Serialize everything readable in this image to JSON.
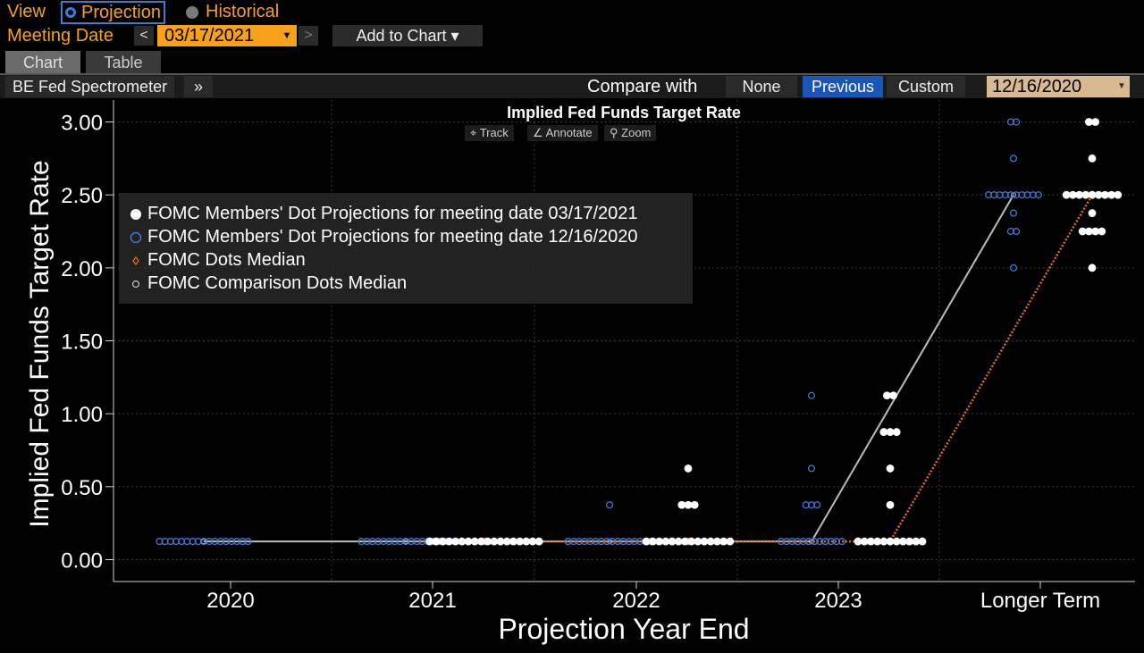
{
  "header": {
    "view_label": "View",
    "projection_label": "Projection",
    "historical_label": "Historical",
    "meeting_label": "Meeting Date",
    "meeting_date": "03/17/2021",
    "prev_glyph": "<",
    "next_glyph": ">",
    "add_to_chart_label": "Add to Chart ▾"
  },
  "tabs": {
    "chart": "Chart",
    "table": "Table"
  },
  "toolbar": {
    "study_label": "BE Fed Spectrometer",
    "expand_glyph": "»",
    "compare_label": "Compare with",
    "none_label": "None",
    "previous_label": "Previous",
    "custom_label": "Custom",
    "compare_date": "12/16/2020"
  },
  "chart_tools": {
    "track": "Track",
    "annotate": "Annotate",
    "zoom": "Zoom"
  },
  "colors": {
    "accent_orange": "#f7a11a",
    "current_dots": "#ffffff",
    "previous_dots": "#3f78d6",
    "median": "#e36a1e",
    "comparison_median": "#bcbcbc"
  },
  "chart_data": {
    "type": "scatter",
    "title": "Implied Fed Funds Target Rate",
    "xlabel": "Projection Year End",
    "ylabel": "Implied Fed Funds Target Rate",
    "categories": [
      "2020",
      "2021",
      "2022",
      "2023",
      "Longer Term"
    ],
    "ylim": [
      -0.15,
      3.15
    ],
    "yticks": [
      "0.00",
      "0.50",
      "1.00",
      "1.50",
      "2.00",
      "2.50",
      "3.00"
    ],
    "legend": [
      "FOMC Members' Dot Projections for meeting date 03/17/2021",
      "FOMC Members' Dot Projections for meeting date 12/16/2020",
      "FOMC Dots Median",
      "FOMC Comparison Dots Median"
    ],
    "series": [
      {
        "name": "FOMC Members' Dot Projections for meeting date 03/17/2021",
        "points": [
          {
            "category": "2021",
            "y": 0.125,
            "count": 18
          },
          {
            "category": "2022",
            "y": 0.125,
            "count": 14
          },
          {
            "category": "2022",
            "y": 0.375,
            "count": 3
          },
          {
            "category": "2022",
            "y": 0.625,
            "count": 1
          },
          {
            "category": "2023",
            "y": 0.125,
            "count": 11
          },
          {
            "category": "2023",
            "y": 0.375,
            "count": 1
          },
          {
            "category": "2023",
            "y": 0.625,
            "count": 1
          },
          {
            "category": "2023",
            "y": 0.875,
            "count": 3
          },
          {
            "category": "2023",
            "y": 1.125,
            "count": 2
          },
          {
            "category": "Longer Term",
            "y": 2.0,
            "count": 1
          },
          {
            "category": "Longer Term",
            "y": 2.25,
            "count": 4
          },
          {
            "category": "Longer Term",
            "y": 2.375,
            "count": 1
          },
          {
            "category": "Longer Term",
            "y": 2.5,
            "count": 9
          },
          {
            "category": "Longer Term",
            "y": 2.75,
            "count": 1
          },
          {
            "category": "Longer Term",
            "y": 3.0,
            "count": 2
          }
        ]
      },
      {
        "name": "FOMC Members' Dot Projections for meeting date 12/16/2020",
        "points": [
          {
            "category": "2020",
            "y": 0.125,
            "count": 17
          },
          {
            "category": "2021",
            "y": 0.125,
            "count": 17
          },
          {
            "category": "2022",
            "y": 0.125,
            "count": 16
          },
          {
            "category": "2022",
            "y": 0.375,
            "count": 1
          },
          {
            "category": "2023",
            "y": 0.125,
            "count": 12
          },
          {
            "category": "2023",
            "y": 0.375,
            "count": 3
          },
          {
            "category": "2023",
            "y": 0.625,
            "count": 1
          },
          {
            "category": "2023",
            "y": 1.125,
            "count": 1
          },
          {
            "category": "Longer Term",
            "y": 2.0,
            "count": 1
          },
          {
            "category": "Longer Term",
            "y": 2.25,
            "count": 2
          },
          {
            "category": "Longer Term",
            "y": 2.375,
            "count": 1
          },
          {
            "category": "Longer Term",
            "y": 2.5,
            "count": 10
          },
          {
            "category": "Longer Term",
            "y": 2.75,
            "count": 1
          },
          {
            "category": "Longer Term",
            "y": 3.0,
            "count": 2
          }
        ]
      },
      {
        "name": "FOMC Dots Median",
        "values": [
          {
            "category": "2021",
            "y": 0.125
          },
          {
            "category": "2022",
            "y": 0.125
          },
          {
            "category": "2023",
            "y": 0.125
          },
          {
            "category": "Longer Term",
            "y": 2.5
          }
        ]
      },
      {
        "name": "FOMC Comparison Dots Median",
        "values": [
          {
            "category": "2020",
            "y": 0.125
          },
          {
            "category": "2021",
            "y": 0.125
          },
          {
            "category": "2022",
            "y": 0.125
          },
          {
            "category": "2023",
            "y": 0.125
          },
          {
            "category": "Longer Term",
            "y": 2.5
          }
        ]
      }
    ]
  }
}
